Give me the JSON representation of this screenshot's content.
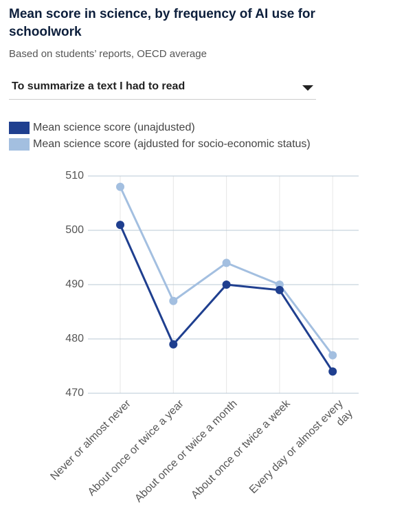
{
  "chart_data": {
    "type": "line",
    "title": "Mean score in science, by frequency of AI use for schoolwork",
    "subtitle": "Based on students’ reports, OECD average",
    "dropdown": "To summarize a text I had to read",
    "categories": [
      "Never or almost never",
      "About once or twice a year",
      "About once or twice a month",
      "About once or twice a week",
      "Every day or almost every day"
    ],
    "series": [
      {
        "name": "Mean science score (unajdusted)",
        "color": "#1f3f8f",
        "values": [
          501,
          479,
          490,
          489,
          474
        ]
      },
      {
        "name": "Mean science score (ajdusted for socio-economic status)",
        "color": "#a3bfe0",
        "values": [
          508,
          487,
          494,
          490,
          477
        ]
      }
    ],
    "ylim": [
      470,
      510
    ],
    "yticks": [
      470,
      480,
      490,
      500,
      510
    ],
    "grid": true
  }
}
